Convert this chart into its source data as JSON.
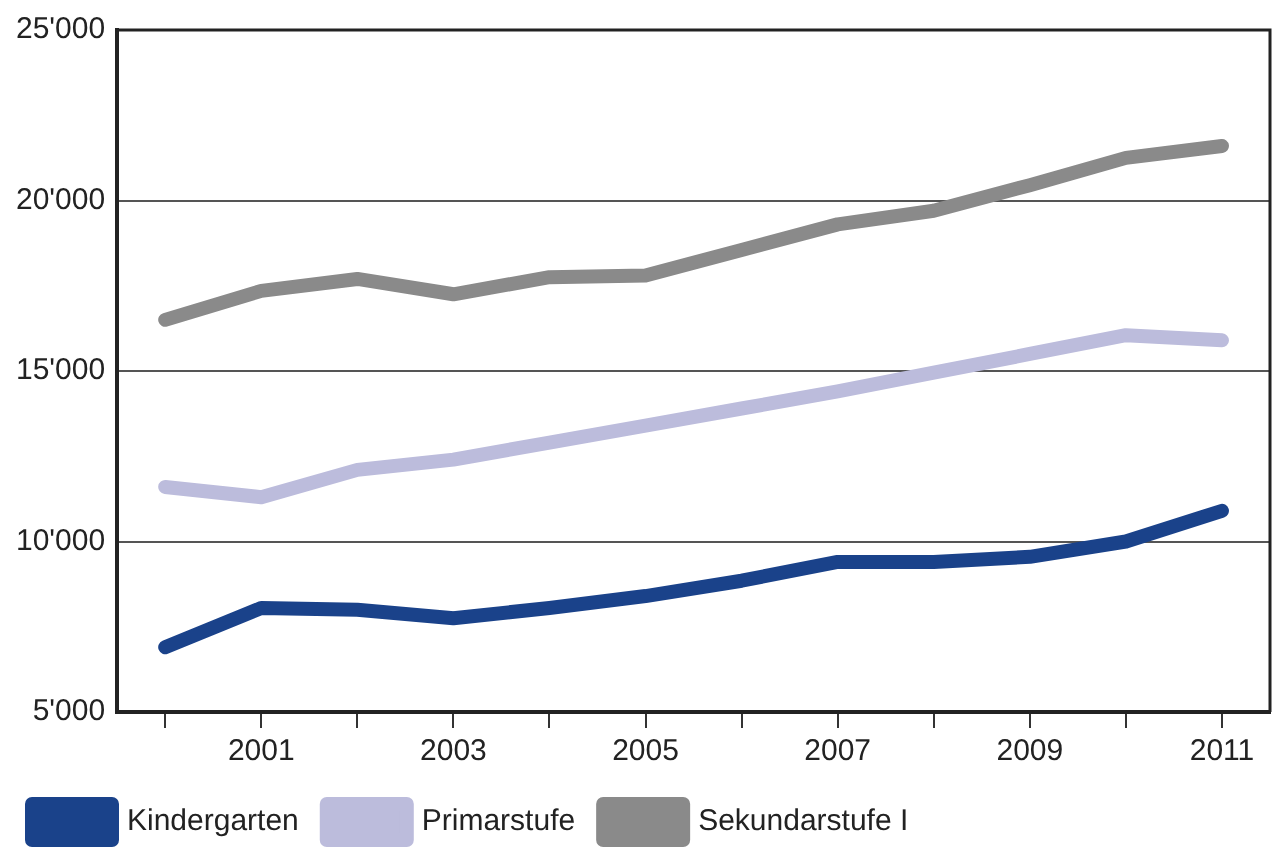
{
  "chart_data": {
    "type": "line",
    "x": [
      2000,
      2001,
      2002,
      2003,
      2004,
      2005,
      2006,
      2007,
      2008,
      2009,
      2010,
      2011
    ],
    "series": [
      {
        "name": "Kindergarten",
        "color": "#1a428a",
        "values": [
          6900,
          8050,
          8000,
          7750,
          8050,
          8400,
          8850,
          9400,
          9400,
          9550,
          10000,
          10900
        ]
      },
      {
        "name": "Primarstufe",
        "color": "#bcbcdc",
        "values": [
          11600,
          11300,
          12100,
          12400,
          12900,
          13400,
          13900,
          14400,
          14950,
          15500,
          16050,
          15900
        ]
      },
      {
        "name": "Sekundarstufe I",
        "color": "#8a8a8a",
        "values": [
          16500,
          17350,
          17700,
          17250,
          17750,
          17800,
          18550,
          19300,
          19700,
          20450,
          21250,
          21600
        ]
      }
    ],
    "xlim": [
      1999.5,
      2011.5
    ],
    "xticks": [
      {
        "value": 2000,
        "label": null
      },
      2001,
      {
        "value": 2002,
        "label": null
      },
      2003,
      {
        "value": 2004,
        "label": null
      },
      2005,
      {
        "value": 2006,
        "label": null
      },
      2007,
      {
        "value": 2008,
        "label": null
      },
      2009,
      {
        "value": 2010,
        "label": null
      },
      2011
    ],
    "ylim": [
      5000,
      25000
    ],
    "yticks": [
      {
        "value": 5000,
        "label": "5'000"
      },
      {
        "value": 10000,
        "label": "10'000"
      },
      {
        "value": 15000,
        "label": "15'000"
      },
      {
        "value": 20000,
        "label": "20'000"
      },
      {
        "value": 25000,
        "label": "25'000"
      }
    ],
    "grid": "y",
    "legend": "bottom",
    "marker": "none",
    "line_style": "solid"
  }
}
